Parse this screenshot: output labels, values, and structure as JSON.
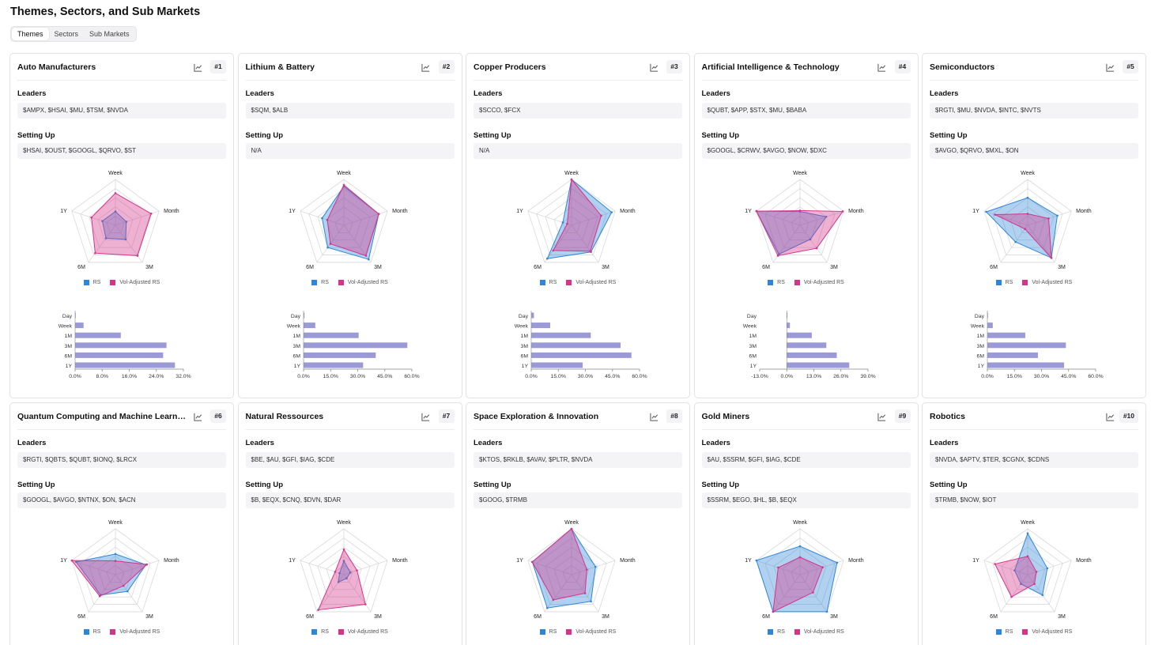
{
  "page": {
    "title": "Themes, Sectors, and Sub Markets",
    "tabs": [
      {
        "label": "Themes",
        "active": true
      },
      {
        "label": "Sectors",
        "active": false
      },
      {
        "label": "Sub Markets",
        "active": false
      }
    ]
  },
  "labels": {
    "leaders": "Leaders",
    "setting_up": "Setting Up",
    "axes": [
      "Week",
      "Month",
      "3M",
      "6M",
      "1Y"
    ],
    "legend_rs": "RS",
    "legend_vol": "Vol-Adjusted RS",
    "bar_periods": [
      "Day",
      "Week",
      "1M",
      "3M",
      "6M",
      "1Y"
    ]
  },
  "colors": {
    "rs": "#2f86d8",
    "vol_adjusted_rs": "#d6338a",
    "bar": "#9b99d6",
    "grid": "#d9d9dd"
  },
  "icons": {
    "chart_button": "line-chart-icon"
  },
  "cards": [
    {
      "title": "Auto Manufacturers",
      "rank": "#1",
      "leaders": "$AMPX, $HSAI, $MU, $TSM, $NVDA",
      "setting_up": "$HSAI, $OUST, $GOOGL, $QRVO, $ST",
      "radar": {
        "rs": [
          0.3,
          0.25,
          0.38,
          0.35,
          0.3
        ],
        "vol_adjusted_rs": [
          0.7,
          0.82,
          0.82,
          0.75,
          0.55
        ]
      },
      "bars": {
        "values": [
          0,
          2.5,
          13.5,
          27,
          26,
          29.5
        ],
        "ticks": [
          "0.0%",
          "8.0%",
          "16.0%",
          "24.0%",
          "32.0%"
        ],
        "min": 0,
        "max": 32
      }
    },
    {
      "title": "Lithium & Battery",
      "rank": "#2",
      "leaders": "$SQM, $ALB",
      "setting_up": "N/A",
      "radar": {
        "rs": [
          0.85,
          0.8,
          0.92,
          0.6,
          0.5
        ],
        "vol_adjusted_rs": [
          0.88,
          0.8,
          0.82,
          0.5,
          0.38
        ]
      },
      "bars": {
        "values": [
          0.5,
          6.5,
          30.5,
          57.5,
          40,
          33
        ],
        "ticks": [
          "0.0%",
          "15.0%",
          "30.0%",
          "45.0%",
          "60.0%"
        ],
        "min": 0,
        "max": 60
      }
    },
    {
      "title": "Copper Producers",
      "rank": "#3",
      "leaders": "$SCCO, $FCX",
      "setting_up": "N/A",
      "radar": {
        "rs": [
          1.0,
          0.92,
          0.72,
          0.9,
          0.2
        ],
        "vol_adjusted_rs": [
          1.0,
          0.68,
          0.7,
          0.68,
          0.1
        ]
      },
      "bars": {
        "values": [
          1.5,
          10.5,
          33,
          49.5,
          55.5,
          28.5
        ],
        "ticks": [
          "0.0%",
          "15.0%",
          "30.0%",
          "45.0%",
          "60.0%"
        ],
        "min": 0,
        "max": 60
      }
    },
    {
      "title": "Artificial Intelligence & Technology",
      "rank": "#4",
      "leaders": "$QUBT, $APP, $STX, $MU, $BABA",
      "setting_up": "$GOOGL, $CRWV, $AVGO, $NOW, $DXC",
      "radar": {
        "rs": [
          0.3,
          0.6,
          0.38,
          0.78,
          1.0
        ],
        "vol_adjusted_rs": [
          0.32,
          0.98,
          0.62,
          0.82,
          1.0
        ]
      },
      "bars": {
        "values": [
          0.2,
          1.5,
          12,
          19,
          24,
          30
        ],
        "ticks": [
          "-13.0%",
          "0.0%",
          "13.0%",
          "26.0%",
          "39.0%"
        ],
        "min": -13,
        "max": 39
      }
    },
    {
      "title": "Semiconductors",
      "rank": "#5",
      "leaders": "$RGTI, $MU, $NVDA, $INTC, $NVTS",
      "setting_up": "$AVGO, $QRVO, $MXL, $ON",
      "radar": {
        "rs": [
          0.6,
          0.68,
          0.88,
          0.45,
          0.95
        ],
        "vol_adjusted_rs": [
          0.25,
          0.48,
          0.88,
          0.1,
          0.75
        ]
      },
      "bars": {
        "values": [
          0.3,
          3,
          21,
          43.5,
          28,
          42.5
        ],
        "ticks": [
          "0.0%",
          "15.0%",
          "30.0%",
          "45.0%",
          "60.0%"
        ],
        "min": 0,
        "max": 60
      }
    },
    {
      "title": "Quantum Computing and Machine Learning ...",
      "rank": "#6",
      "leaders": "$RGTI, $QBTS, $QUBT, $IONQ, $LRCX",
      "setting_up": "$GOOGL, $AVGO, $NTNX, $ON, $ACN",
      "radar": {
        "rs": [
          0.45,
          0.7,
          0.45,
          0.55,
          0.9
        ],
        "vol_adjusted_rs": [
          0.3,
          0.72,
          0.3,
          0.58,
          1.0
        ]
      }
    },
    {
      "title": "Natural Ressources",
      "rank": "#7",
      "leaders": "$BE, $AU, $GFI, $IAG, $CDE",
      "setting_up": "$B, $EQX, $CNQ, $DVN, $DAR",
      "radar": {
        "rs": [
          0.3,
          0.15,
          0.1,
          0.2,
          0.1
        ],
        "vol_adjusted_rs": [
          0.55,
          0.3,
          0.8,
          0.95,
          0.2
        ]
      }
    },
    {
      "title": "Space Exploration & Innovation",
      "rank": "#8",
      "leaders": "$KTOS, $RKLB, $AVAV, $PLTR, $NVDA",
      "setting_up": "$GOOG, $TRMB",
      "radar": {
        "rs": [
          1.0,
          0.55,
          0.72,
          0.9,
          0.9
        ],
        "vol_adjusted_rs": [
          1.0,
          0.35,
          0.5,
          0.68,
          0.9
        ]
      }
    },
    {
      "title": "Gold Miners",
      "rank": "#9",
      "leaders": "$AU, $SSRM, $GFI, $IAG, $CDE",
      "setting_up": "$SSRM, $EGO, $HL, $B, $EQX",
      "radar": {
        "rs": [
          0.62,
          0.85,
          1.0,
          1.0,
          1.0
        ],
        "vol_adjusted_rs": [
          0.38,
          0.52,
          0.48,
          1.0,
          0.5
        ]
      }
    },
    {
      "title": "Robotics",
      "rank": "#10",
      "leaders": "$NVDA, $APTV, $TER, $CGNX, $CDNS",
      "setting_up": "$TRMB, $NOW, $IOT",
      "radar": {
        "rs": [
          0.9,
          0.45,
          0.55,
          0.25,
          0.3
        ],
        "vol_adjusted_rs": [
          0.4,
          0.2,
          0.25,
          0.6,
          0.75
        ]
      }
    }
  ]
}
